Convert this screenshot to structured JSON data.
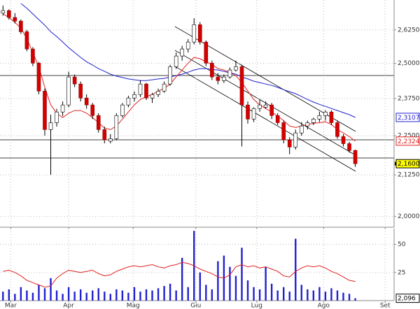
{
  "chart_data": [
    {
      "type": "candlestick",
      "x": [
        0,
        1,
        2,
        3,
        4,
        5,
        6,
        7,
        8,
        9,
        10,
        11,
        12,
        13,
        14,
        15,
        16,
        17,
        18,
        19,
        20,
        21,
        22,
        23,
        24,
        25,
        26,
        27,
        28,
        29,
        30,
        31,
        32,
        33,
        34,
        35,
        36,
        37,
        38,
        39,
        40,
        41,
        42,
        43,
        44,
        45,
        46,
        47,
        48,
        49,
        50,
        51,
        52,
        53,
        54,
        55,
        56,
        57,
        58,
        59
      ],
      "open": [
        2.69,
        2.7,
        2.673,
        2.659,
        2.618,
        2.553,
        2.501,
        2.401,
        2.27,
        2.293,
        2.329,
        2.353,
        2.451,
        2.426,
        2.377,
        2.353,
        2.317,
        2.27,
        2.232,
        2.24,
        2.317,
        2.353,
        2.377,
        2.389,
        2.426,
        2.377,
        2.389,
        2.401,
        2.426,
        2.488,
        2.527,
        2.553,
        2.579,
        2.645,
        2.579,
        2.501,
        2.451,
        2.438,
        2.451,
        2.476,
        2.488,
        2.353,
        2.305,
        2.341,
        2.345,
        2.353,
        2.317,
        2.293,
        2.236,
        2.213,
        2.259,
        2.282,
        2.293,
        2.305,
        2.317,
        2.329,
        2.293,
        2.247,
        2.224,
        2.202
      ],
      "high": [
        2.72,
        2.705,
        2.69,
        2.665,
        2.625,
        2.56,
        2.505,
        2.41,
        2.32,
        2.34,
        2.365,
        2.47,
        2.46,
        2.435,
        2.39,
        2.36,
        2.325,
        2.28,
        2.255,
        2.325,
        2.36,
        2.385,
        2.4,
        2.44,
        2.43,
        2.395,
        2.41,
        2.435,
        2.495,
        2.54,
        2.565,
        2.59,
        2.67,
        2.655,
        2.585,
        2.51,
        2.465,
        2.46,
        2.485,
        2.51,
        2.495,
        2.365,
        2.345,
        2.37,
        2.365,
        2.36,
        2.325,
        2.3,
        2.245,
        2.27,
        2.295,
        2.3,
        2.31,
        2.33,
        2.335,
        2.335,
        2.3,
        2.255,
        2.23,
        2.205
      ],
      "low": [
        2.68,
        2.665,
        2.65,
        2.61,
        2.545,
        2.49,
        2.39,
        2.25,
        2.125,
        2.28,
        2.315,
        2.345,
        2.415,
        2.365,
        2.34,
        2.305,
        2.26,
        2.225,
        2.225,
        2.235,
        2.31,
        2.345,
        2.365,
        2.38,
        2.37,
        2.36,
        2.38,
        2.395,
        2.42,
        2.48,
        2.51,
        2.54,
        2.57,
        2.57,
        2.49,
        2.44,
        2.425,
        2.43,
        2.445,
        2.47,
        2.215,
        2.29,
        2.295,
        2.33,
        2.34,
        2.305,
        2.285,
        2.225,
        2.19,
        2.205,
        2.25,
        2.27,
        2.285,
        2.295,
        2.3,
        2.285,
        2.24,
        2.215,
        2.195,
        2.15
      ],
      "close": [
        2.7,
        2.673,
        2.659,
        2.618,
        2.553,
        2.501,
        2.401,
        2.27,
        2.293,
        2.329,
        2.353,
        2.451,
        2.426,
        2.377,
        2.353,
        2.317,
        2.27,
        2.236,
        2.24,
        2.317,
        2.353,
        2.377,
        2.389,
        2.426,
        2.377,
        2.389,
        2.401,
        2.426,
        2.488,
        2.527,
        2.553,
        2.579,
        2.645,
        2.579,
        2.501,
        2.451,
        2.438,
        2.451,
        2.476,
        2.488,
        2.353,
        2.305,
        2.341,
        2.353,
        2.353,
        2.317,
        2.293,
        2.236,
        2.213,
        2.259,
        2.282,
        2.293,
        2.305,
        2.317,
        2.329,
        2.293,
        2.247,
        2.224,
        2.202,
        2.16
      ],
      "last_close_label": "2,1600",
      "up_color": "#ffffff",
      "down_color": "#d40000",
      "series": [
        {
          "color": "#2020d0",
          "last_label": "2,3107",
          "values": [
            null,
            null,
            null,
            2.728,
            2.709,
            2.687,
            2.665,
            2.643,
            2.618,
            2.6,
            2.579,
            2.558,
            2.54,
            2.522,
            2.506,
            2.494,
            2.481,
            2.471,
            2.461,
            2.454,
            2.449,
            2.444,
            2.441,
            2.438,
            2.438,
            2.441,
            2.444,
            2.446,
            2.451,
            2.456,
            2.461,
            2.468,
            2.476,
            2.481,
            2.481,
            2.478,
            2.476,
            2.471,
            2.466,
            2.461,
            2.451,
            2.444,
            2.436,
            2.431,
            2.426,
            2.421,
            2.414,
            2.406,
            2.399,
            2.392,
            2.382,
            2.372,
            2.363,
            2.355,
            2.348,
            2.341,
            2.334,
            2.327,
            2.32,
            2.3107
          ]
        },
        {
          "color": "#e02020",
          "last_label": "2,2324",
          "values": [
            2.687,
            2.673,
            2.654,
            2.632,
            2.592,
            2.54,
            2.488,
            2.414,
            2.353,
            2.325,
            2.31,
            2.325,
            2.334,
            2.334,
            2.325,
            2.31,
            2.293,
            2.275,
            2.27,
            2.282,
            2.305,
            2.329,
            2.353,
            2.372,
            2.382,
            2.389,
            2.401,
            2.411,
            2.426,
            2.451,
            2.476,
            2.501,
            2.522,
            2.517,
            2.506,
            2.496,
            2.481,
            2.476,
            2.466,
            2.456,
            2.431,
            2.401,
            2.372,
            2.353,
            2.341,
            2.329,
            2.315,
            2.3,
            2.282,
            2.277,
            2.282,
            2.287,
            2.291,
            2.293,
            2.296,
            2.287,
            2.27,
            2.259,
            2.247,
            2.2324
          ]
        }
      ],
      "xlim": [
        -0.5,
        65.5
      ],
      "ylim": [
        1.969,
        2.742
      ],
      "log_scale": true,
      "grid": true,
      "yticks": [
        {
          "value": 2.0,
          "label": "2,0000"
        },
        {
          "value": 2.125,
          "label": "2,1250"
        },
        {
          "value": 2.25,
          "label": "2,2500"
        },
        {
          "value": 2.375,
          "label": "2,3750"
        },
        {
          "value": 2.5,
          "label": "2,5000"
        },
        {
          "value": 2.625,
          "label": "2,6250"
        }
      ]
    },
    {
      "type": "bar",
      "x": [
        0,
        1,
        2,
        3,
        4,
        5,
        6,
        7,
        8,
        9,
        10,
        11,
        12,
        13,
        14,
        15,
        16,
        17,
        18,
        19,
        20,
        21,
        22,
        23,
        24,
        25,
        26,
        27,
        28,
        29,
        30,
        31,
        32,
        33,
        34,
        35,
        36,
        37,
        38,
        39,
        40,
        41,
        42,
        43,
        44,
        45,
        46,
        47,
        48,
        49,
        50,
        51,
        52,
        53,
        54,
        55,
        56,
        57,
        58,
        59
      ],
      "values": [
        8,
        10,
        6,
        12,
        9,
        7,
        14,
        11,
        20,
        9,
        6,
        12,
        8,
        10,
        7,
        9,
        11,
        8,
        6,
        10,
        9,
        7,
        12,
        8,
        10,
        9,
        11,
        13,
        15,
        9,
        38,
        12,
        62,
        25,
        14,
        10,
        35,
        40,
        30,
        22,
        47,
        18,
        12,
        10,
        30,
        15,
        9,
        12,
        8,
        55,
        14,
        10,
        9,
        12,
        8,
        11,
        9,
        7,
        6,
        2.096
      ],
      "last_label": "2,096",
      "color": "#2020d0",
      "series": [
        {
          "color": "#e02020",
          "values": [
            26,
            27,
            25,
            22,
            18,
            16,
            14,
            12,
            13,
            20,
            24,
            27,
            26,
            25,
            26,
            27,
            24,
            22,
            23,
            26,
            28,
            30,
            31,
            30,
            31,
            32,
            30,
            29,
            31,
            32,
            34,
            33,
            31,
            28,
            26,
            24,
            21,
            20,
            23,
            30,
            32,
            30,
            31,
            29,
            30,
            28,
            26,
            22,
            21,
            26,
            29,
            31,
            30,
            31,
            29,
            26,
            24,
            21,
            18,
            17
          ]
        }
      ],
      "xlim": [
        -0.5,
        65.5
      ],
      "ylim": [
        0,
        64
      ],
      "grid": true,
      "yticks": [
        25,
        50
      ],
      "xticks": [
        {
          "value": 1.3,
          "label": "Mar"
        },
        {
          "value": 11,
          "label": "Apr"
        },
        {
          "value": 21.8,
          "label": "Mag"
        },
        {
          "value": 32.3,
          "label": "Giu"
        },
        {
          "value": 42.5,
          "label": "Lug"
        },
        {
          "value": 53.7,
          "label": "Ago"
        },
        {
          "value": 64,
          "label": "Set"
        }
      ]
    }
  ]
}
